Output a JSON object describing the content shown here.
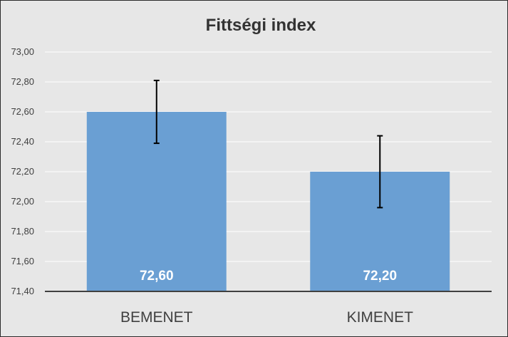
{
  "chart_data": {
    "type": "bar",
    "title": "Fittségi index",
    "categories": [
      "BEMENET",
      "KIMENET"
    ],
    "values": [
      72.6,
      72.2
    ],
    "data_labels": [
      "72,60",
      "72,20"
    ],
    "error_bars": [
      {
        "low": 72.39,
        "high": 72.81
      },
      {
        "low": 71.96,
        "high": 72.44
      }
    ],
    "ylim": [
      71.4,
      73.0
    ],
    "yticks": [
      71.4,
      71.6,
      71.8,
      72.0,
      72.2,
      72.4,
      72.6,
      72.8,
      73.0
    ],
    "ytick_labels": [
      "71,40",
      "71,60",
      "71,80",
      "72,00",
      "72,20",
      "72,40",
      "72,60",
      "72,80",
      "73,00"
    ],
    "grid": true,
    "bar_color": "#6a9fd3",
    "xlabel": "",
    "ylabel": ""
  }
}
